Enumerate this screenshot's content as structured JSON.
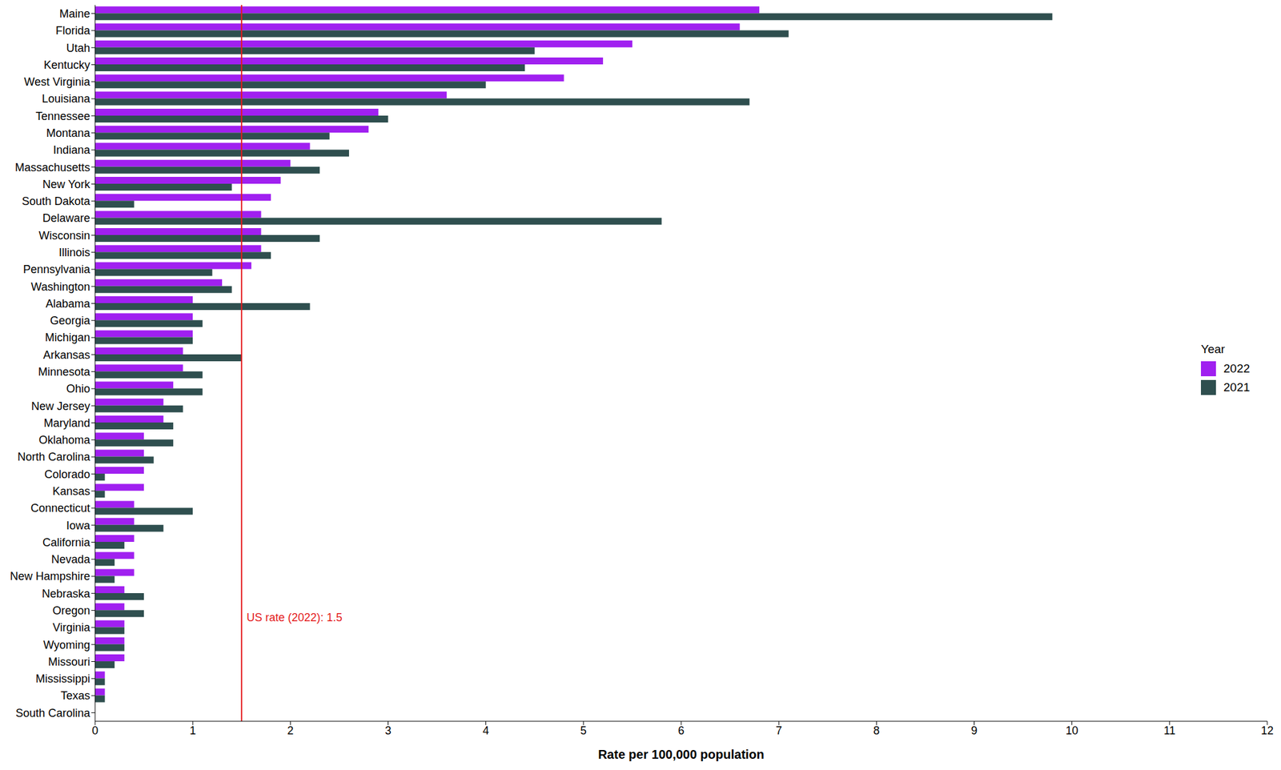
{
  "chart_data": {
    "type": "bar",
    "orientation": "horizontal",
    "x_label": "Rate per 100,000 population",
    "legend_title": "Year",
    "legend": "right",
    "categories": [
      "Maine",
      "Florida",
      "Utah",
      "Kentucky",
      "West Virginia",
      "Louisiana",
      "Tennessee",
      "Montana",
      "Indiana",
      "Massachusetts",
      "New York",
      "South Dakota",
      "Delaware",
      "Wisconsin",
      "Illinois",
      "Pennsylvania",
      "Washington",
      "Alabama",
      "Georgia",
      "Michigan",
      "Arkansas",
      "Minnesota",
      "Ohio",
      "New Jersey",
      "Maryland",
      "Oklahoma",
      "North Carolina",
      "Colorado",
      "Kansas",
      "Connecticut",
      "Iowa",
      "California",
      "Nevada",
      "New Hampshire",
      "Nebraska",
      "Oregon",
      "Virginia",
      "Wyoming",
      "Missouri",
      "Mississippi",
      "Texas",
      "South Carolina"
    ],
    "series": [
      {
        "name": "2022",
        "color": "#a020f0",
        "values": [
          6.8,
          6.6,
          5.5,
          5.2,
          4.8,
          3.6,
          2.9,
          2.8,
          2.2,
          2.0,
          1.9,
          1.8,
          1.7,
          1.7,
          1.7,
          1.6,
          1.3,
          1.0,
          1.0,
          1.0,
          0.9,
          0.9,
          0.8,
          0.7,
          0.7,
          0.5,
          0.5,
          0.5,
          0.5,
          0.4,
          0.4,
          0.4,
          0.4,
          0.4,
          0.3,
          0.3,
          0.3,
          0.3,
          0.3,
          0.1,
          0.1,
          0
        ]
      },
      {
        "name": "2021",
        "color": "#2f4f4f",
        "values": [
          9.8,
          7.1,
          4.5,
          4.4,
          4.0,
          6.7,
          3.0,
          2.4,
          2.6,
          2.3,
          1.4,
          0.4,
          5.8,
          2.3,
          1.8,
          1.2,
          1.4,
          2.2,
          1.1,
          1.0,
          1.5,
          1.1,
          1.1,
          0.9,
          0.8,
          0.8,
          0.6,
          0.1,
          0.1,
          1.0,
          0.7,
          0.3,
          0.2,
          0.2,
          0.5,
          0.5,
          0.3,
          0.3,
          0.2,
          0.1,
          0.1,
          0
        ]
      }
    ],
    "xlim": [
      0,
      12
    ],
    "xticks": [
      0,
      1,
      2,
      3,
      4,
      5,
      6,
      7,
      8,
      9,
      10,
      11,
      12
    ],
    "grid": false,
    "annotations": [
      {
        "x": 1.5,
        "label": "US rate (2022): 1.5",
        "color": "#e41a1c"
      }
    ]
  }
}
